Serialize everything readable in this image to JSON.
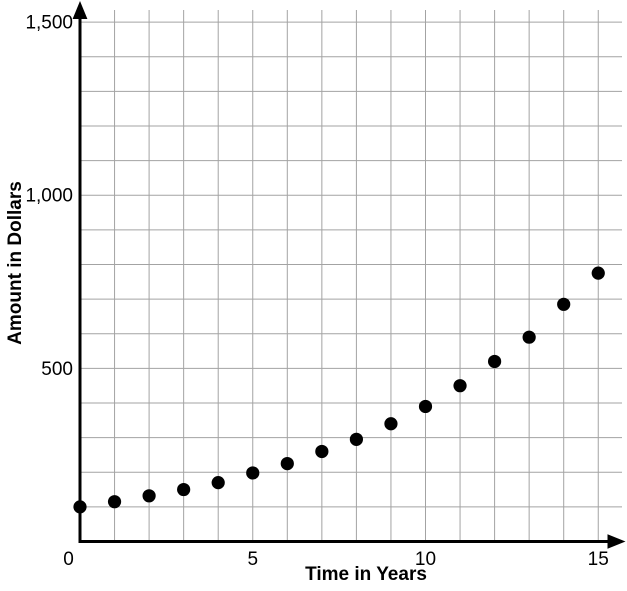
{
  "chart_data": {
    "type": "scatter",
    "title": "",
    "xlabel": "Time in Years",
    "ylabel": "Amount in Dollars",
    "x": [
      0,
      1,
      2,
      3,
      4,
      5,
      6,
      7,
      8,
      9,
      10,
      11,
      12,
      13,
      14,
      15
    ],
    "y": [
      100,
      115,
      132,
      150,
      170,
      198,
      225,
      260,
      295,
      340,
      390,
      450,
      520,
      590,
      685,
      775
    ],
    "xlim": [
      0,
      15
    ],
    "ylim": [
      0,
      1500
    ],
    "x_grid_step": 1,
    "y_grid_step": 100,
    "x_tick_values": [
      0,
      5,
      10,
      15
    ],
    "x_tick_labels": [
      "0",
      "5",
      "10",
      "15"
    ],
    "y_tick_values": [
      500,
      1000,
      1500
    ],
    "y_tick_labels": [
      "500",
      "1,000",
      "1,500"
    ],
    "grid": true,
    "legend": "none",
    "colors": {
      "point": "#000000",
      "axis": "#000000",
      "grid": "#a3a3a3",
      "text": "#000000",
      "background": "#ffffff"
    }
  }
}
